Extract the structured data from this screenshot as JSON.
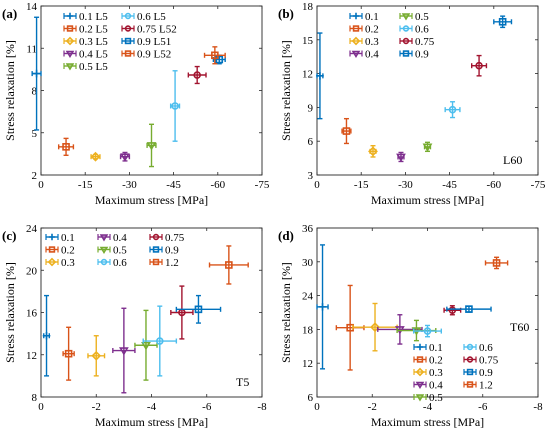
{
  "chart_data": [
    {
      "id": "a",
      "panel_label": "(a)",
      "type": "scatter",
      "xlabel": "Maximum stress [MPa]",
      "ylabel": "Stress relaxation [%]",
      "xlim": [
        0,
        -75
      ],
      "ylim": [
        2,
        14
      ],
      "xticks": [
        0,
        -15,
        -30,
        -45,
        -60,
        -75
      ],
      "yticks": [
        2,
        5,
        8,
        11,
        14
      ],
      "annotation": "",
      "legend_cols": 2,
      "legend_placement": "top-left",
      "series": [
        {
          "name": "0.1 L5",
          "color": "#0072BD",
          "marker": "plus",
          "x": 1.5,
          "y": 9.2,
          "xerr": 1.5,
          "yerr": 4.0
        },
        {
          "name": "0.2 L5",
          "color": "#D95319",
          "marker": "square",
          "x": -8.5,
          "y": 4.0,
          "xerr": 2.5,
          "yerr": 0.6
        },
        {
          "name": "0.3 L5",
          "color": "#EDB120",
          "marker": "diamond",
          "x": -18.5,
          "y": 3.3,
          "xerr": 1.5,
          "yerr": 0.15
        },
        {
          "name": "0.4 L5",
          "color": "#7E2F8E",
          "marker": "triangle",
          "x": -28.5,
          "y": 3.3,
          "xerr": 1.5,
          "yerr": 0.3
        },
        {
          "name": "0.5 L5",
          "color": "#77AC30",
          "marker": "triangle",
          "x": -37.5,
          "y": 4.1,
          "xerr": 1.5,
          "yerr": 1.5
        },
        {
          "name": "0.6 L5",
          "color": "#4DBEEE",
          "marker": "circle",
          "x": -45.5,
          "y": 6.9,
          "xerr": 1.5,
          "yerr": 2.5
        },
        {
          "name": "0.75 L52",
          "color": "#A2142F",
          "marker": "circle",
          "x": -53.0,
          "y": 9.1,
          "xerr": 3.0,
          "yerr": 0.6
        },
        {
          "name": "0.9 L51",
          "color": "#0072BD",
          "marker": "square",
          "x": -60.5,
          "y": 10.2,
          "xerr": 2.0,
          "yerr": 0.3
        },
        {
          "name": "0.9 L52",
          "color": "#D95319",
          "marker": "square",
          "x": -59.0,
          "y": 10.5,
          "xerr": 3.5,
          "yerr": 0.6
        }
      ]
    },
    {
      "id": "b",
      "panel_label": "(b)",
      "type": "scatter",
      "xlabel": "Maximum stress [MPa]",
      "ylabel": "Stress relaxation [%]",
      "xlim": [
        0,
        -75
      ],
      "ylim": [
        3,
        18
      ],
      "xticks": [
        0,
        -15,
        -30,
        -45,
        -60,
        -75
      ],
      "yticks": [
        3,
        6,
        9,
        12,
        15,
        18
      ],
      "annotation": "L60",
      "legend_cols": 2,
      "legend_placement": "top-left",
      "series": [
        {
          "name": "0.1",
          "color": "#0072BD",
          "marker": "plus",
          "x": -1.0,
          "y": 11.8,
          "xerr": 1.0,
          "yerr": 3.8
        },
        {
          "name": "0.2",
          "color": "#D95319",
          "marker": "square",
          "x": -10.0,
          "y": 6.9,
          "xerr": 1.5,
          "yerr": 1.1
        },
        {
          "name": "0.3",
          "color": "#EDB120",
          "marker": "diamond",
          "x": -19.0,
          "y": 5.1,
          "xerr": 1.0,
          "yerr": 0.5
        },
        {
          "name": "0.4",
          "color": "#7E2F8E",
          "marker": "triangle",
          "x": -28.5,
          "y": 4.6,
          "xerr": 1.0,
          "yerr": 0.4
        },
        {
          "name": "0.5",
          "color": "#77AC30",
          "marker": "triangle",
          "x": -37.5,
          "y": 5.5,
          "xerr": 1.0,
          "yerr": 0.4
        },
        {
          "name": "0.6",
          "color": "#4DBEEE",
          "marker": "circle",
          "x": -46.0,
          "y": 8.8,
          "xerr": 2.5,
          "yerr": 0.7
        },
        {
          "name": "0.75",
          "color": "#A2142F",
          "marker": "circle",
          "x": -55.0,
          "y": 12.7,
          "xerr": 2.5,
          "yerr": 0.9
        },
        {
          "name": "0.9",
          "color": "#0072BD",
          "marker": "square",
          "x": -63.0,
          "y": 16.6,
          "xerr": 3.0,
          "yerr": 0.5
        }
      ]
    },
    {
      "id": "c",
      "panel_label": "(c)",
      "type": "scatter",
      "xlabel": "Maximum stress [MPa]",
      "ylabel": "Stress relaxation [%]",
      "xlim": [
        0,
        -8
      ],
      "ylim": [
        8,
        24
      ],
      "xticks": [
        0,
        -2,
        -4,
        -6,
        -8
      ],
      "yticks": [
        8,
        12,
        16,
        20,
        24
      ],
      "annotation": "T5",
      "legend_cols": 4,
      "legend_placement": "top",
      "series": [
        {
          "name": "0.1",
          "color": "#0072BD",
          "marker": "plus",
          "x": -0.2,
          "y": 13.8,
          "xerr": 0.1,
          "yerr": 3.8
        },
        {
          "name": "0.2",
          "color": "#D95319",
          "marker": "square",
          "x": -1.0,
          "y": 12.1,
          "xerr": 0.2,
          "yerr": 2.5
        },
        {
          "name": "0.3",
          "color": "#EDB120",
          "marker": "diamond",
          "x": -2.0,
          "y": 11.9,
          "xerr": 0.3,
          "yerr": 1.9
        },
        {
          "name": "0.4",
          "color": "#7E2F8E",
          "marker": "triangle",
          "x": -3.0,
          "y": 12.4,
          "xerr": 0.4,
          "yerr": 4.0
        },
        {
          "name": "0.5",
          "color": "#77AC30",
          "marker": "triangle",
          "x": -3.8,
          "y": 12.9,
          "xerr": 0.4,
          "yerr": 3.3
        },
        {
          "name": "0.6",
          "color": "#4DBEEE",
          "marker": "circle",
          "x": -4.3,
          "y": 13.3,
          "xerr": 0.6,
          "yerr": 3.3
        },
        {
          "name": "0.75",
          "color": "#A2142F",
          "marker": "circle",
          "x": -5.1,
          "y": 16.0,
          "xerr": 0.4,
          "yerr": 2.5
        },
        {
          "name": "0.9",
          "color": "#0072BD",
          "marker": "square",
          "x": -5.7,
          "y": 16.3,
          "xerr": 0.8,
          "yerr": 1.3
        },
        {
          "name": "1.2",
          "color": "#D95319",
          "marker": "square",
          "x": -6.8,
          "y": 20.5,
          "xerr": 0.7,
          "yerr": 1.8
        }
      ]
    },
    {
      "id": "d",
      "panel_label": "(d)",
      "type": "scatter",
      "xlabel": "Maximum stress [MPa]",
      "ylabel": "Stress relaxation [%]",
      "xlim": [
        0,
        -8
      ],
      "ylim": [
        6,
        36
      ],
      "xticks": [
        0,
        -2,
        -4,
        -6,
        -8
      ],
      "yticks": [
        6,
        12,
        18,
        24,
        30,
        36
      ],
      "annotation": "T60",
      "legend_cols": 2,
      "legend_placement": "bottom-right",
      "series": [
        {
          "name": "0.1",
          "color": "#0072BD",
          "marker": "plus",
          "x": -0.2,
          "y": 22.0,
          "xerr": 0.2,
          "yerr": 11.0
        },
        {
          "name": "0.2",
          "color": "#D95319",
          "marker": "square",
          "x": -1.2,
          "y": 18.3,
          "xerr": 0.5,
          "yerr": 7.5
        },
        {
          "name": "0.3",
          "color": "#EDB120",
          "marker": "diamond",
          "x": -2.1,
          "y": 18.4,
          "xerr": 0.8,
          "yerr": 4.2
        },
        {
          "name": "0.4",
          "color": "#7E2F8E",
          "marker": "triangle",
          "x": -3.0,
          "y": 18.0,
          "xerr": 0.8,
          "yerr": 2.6
        },
        {
          "name": "0.5",
          "color": "#77AC30",
          "marker": "triangle",
          "x": -3.6,
          "y": 17.8,
          "xerr": 0.7,
          "yerr": 1.8
        },
        {
          "name": "0.6",
          "color": "#4DBEEE",
          "marker": "circle",
          "x": -4.0,
          "y": 17.7,
          "xerr": 0.5,
          "yerr": 1.0
        },
        {
          "name": "0.75",
          "color": "#A2142F",
          "marker": "circle",
          "x": -4.9,
          "y": 21.4,
          "xerr": 0.3,
          "yerr": 0.8
        },
        {
          "name": "0.9",
          "color": "#0072BD",
          "marker": "square",
          "x": -5.5,
          "y": 21.6,
          "xerr": 0.8,
          "yerr": 0.5
        },
        {
          "name": "1.2",
          "color": "#D95319",
          "marker": "square",
          "x": -6.5,
          "y": 29.8,
          "xerr": 0.4,
          "yerr": 1.0
        }
      ]
    }
  ]
}
